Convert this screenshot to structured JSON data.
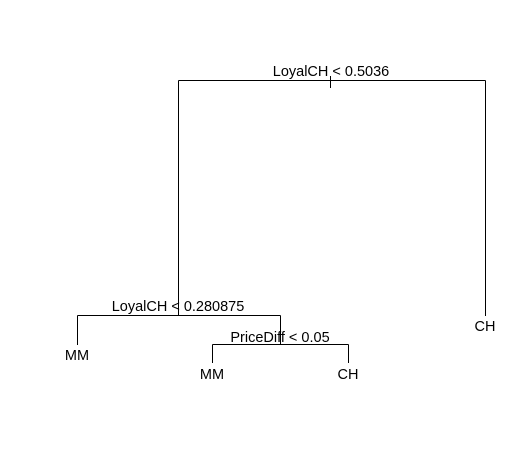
{
  "tree": {
    "root": {
      "split": "LoyalCH < 0.5036",
      "left": {
        "split": "LoyalCH < 0.280875",
        "left": {
          "leaf": "MM"
        },
        "right": {
          "split": "PriceDiff < 0.05",
          "left": {
            "leaf": "MM"
          },
          "right": {
            "leaf": "CH"
          }
        }
      },
      "right": {
        "leaf": "CH"
      }
    }
  }
}
